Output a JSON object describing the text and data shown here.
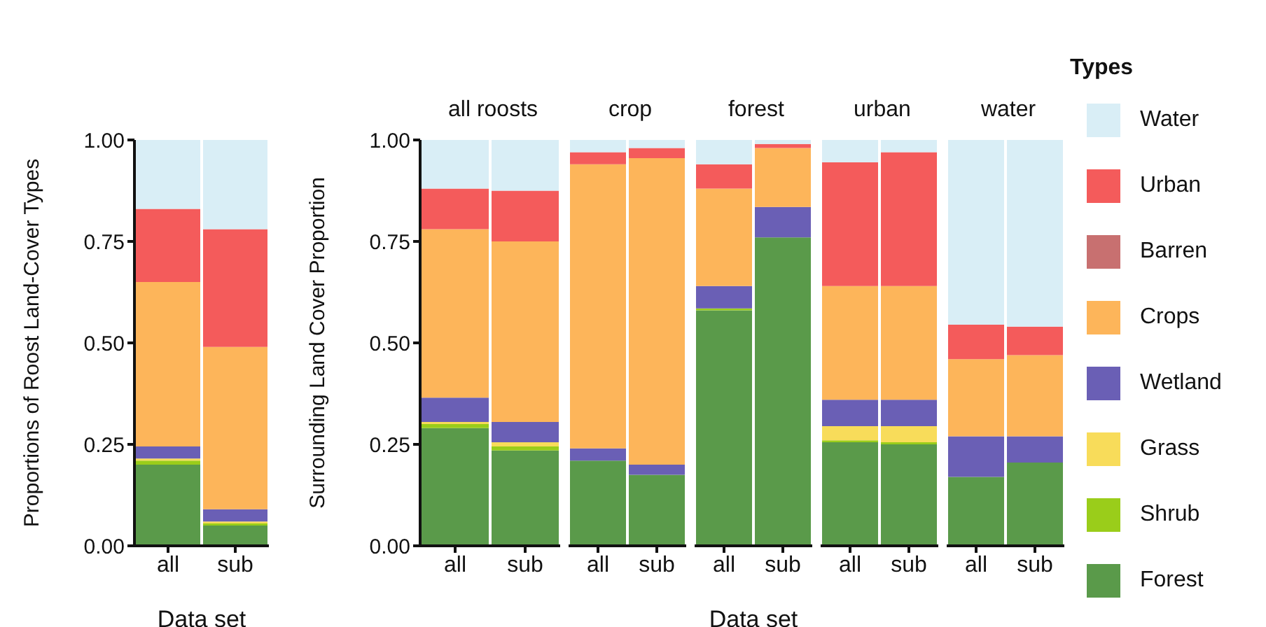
{
  "chart_data": [
    {
      "type": "bar",
      "stacked": true,
      "ylabel": "Proportions of Roost Land-Cover Types",
      "xlabel": "Data set",
      "categories": [
        "all",
        "sub"
      ],
      "ylim": [
        0,
        1
      ],
      "yticks": [
        {
          "value": 0,
          "label": "0.00"
        },
        {
          "value": 0.25,
          "label": "0.25"
        },
        {
          "value": 0.5,
          "label": "0.50"
        },
        {
          "value": 0.75,
          "label": "0.75"
        },
        {
          "value": 1,
          "label": "1.00"
        }
      ],
      "series": [
        {
          "color": "#5a9a4a",
          "values": [
            0.2,
            0.05
          ]
        },
        {
          "color": "#9acd1a",
          "values": [
            0.01,
            0.005
          ]
        },
        {
          "color": "#f8dc5a",
          "values": [
            0.005,
            0.005
          ]
        },
        {
          "color": "#6a5fb5",
          "values": [
            0.03,
            0.03
          ]
        },
        {
          "color": "#fdb55a",
          "values": [
            0.405,
            0.4
          ]
        },
        {
          "color": "#c87070",
          "values": [
            0,
            0
          ]
        },
        {
          "color": "#f45b5b",
          "values": [
            0.18,
            0.29
          ]
        },
        {
          "color": "#d9eef6",
          "values": [
            0.17,
            0.22
          ]
        }
      ]
    },
    {
      "type": "bar",
      "stacked": true,
      "title": "all roosts",
      "ylabel": "Surrounding Land Cover Proportion",
      "categories": [
        "all",
        "sub"
      ],
      "ylim": [
        0,
        1
      ],
      "yticks": [
        {
          "value": 0,
          "label": "0.00"
        },
        {
          "value": 0.25,
          "label": "0.25"
        },
        {
          "value": 0.5,
          "label": "0.50"
        },
        {
          "value": 0.75,
          "label": "0.75"
        },
        {
          "value": 1,
          "label": "1.00"
        }
      ],
      "series": [
        {
          "color": "#5a9a4a",
          "values": [
            0.29,
            0.235
          ]
        },
        {
          "color": "#9acd1a",
          "values": [
            0.01,
            0.01
          ]
        },
        {
          "color": "#f8dc5a",
          "values": [
            0.005,
            0.01
          ]
        },
        {
          "color": "#6a5fb5",
          "values": [
            0.06,
            0.05
          ]
        },
        {
          "color": "#fdb55a",
          "values": [
            0.415,
            0.445
          ]
        },
        {
          "color": "#c87070",
          "values": [
            0,
            0
          ]
        },
        {
          "color": "#f45b5b",
          "values": [
            0.1,
            0.125
          ]
        },
        {
          "color": "#d9eef6",
          "values": [
            0.12,
            0.125
          ]
        }
      ]
    },
    {
      "type": "bar",
      "stacked": true,
      "title": "crop",
      "tick_labels": "x",
      "categories": [
        "all",
        "sub"
      ],
      "ylim": [
        0,
        1
      ],
      "series": [
        {
          "color": "#5a9a4a",
          "values": [
            0.21,
            0.175
          ]
        },
        {
          "color": "#9acd1a",
          "values": [
            0,
            0
          ]
        },
        {
          "color": "#f8dc5a",
          "values": [
            0,
            0
          ]
        },
        {
          "color": "#6a5fb5",
          "values": [
            0.03,
            0.025
          ]
        },
        {
          "color": "#fdb55a",
          "values": [
            0.7,
            0.755
          ]
        },
        {
          "color": "#c87070",
          "values": [
            0,
            0
          ]
        },
        {
          "color": "#f45b5b",
          "values": [
            0.03,
            0.025
          ]
        },
        {
          "color": "#d9eef6",
          "values": [
            0.03,
            0.02
          ]
        }
      ]
    },
    {
      "type": "bar",
      "stacked": true,
      "title": "forest",
      "xlabel": "Data set",
      "tick_labels": "x",
      "categories": [
        "all",
        "sub"
      ],
      "ylim": [
        0,
        1
      ],
      "series": [
        {
          "color": "#5a9a4a",
          "values": [
            0.58,
            0.76
          ]
        },
        {
          "color": "#9acd1a",
          "values": [
            0.005,
            0
          ]
        },
        {
          "color": "#f8dc5a",
          "values": [
            0,
            0
          ]
        },
        {
          "color": "#6a5fb5",
          "values": [
            0.055,
            0.075
          ]
        },
        {
          "color": "#fdb55a",
          "values": [
            0.24,
            0.145
          ]
        },
        {
          "color": "#c87070",
          "values": [
            0,
            0
          ]
        },
        {
          "color": "#f45b5b",
          "values": [
            0.06,
            0.01
          ]
        },
        {
          "color": "#d9eef6",
          "values": [
            0.06,
            0.01
          ]
        }
      ]
    },
    {
      "type": "bar",
      "stacked": true,
      "title": "urban",
      "tick_labels": "x",
      "categories": [
        "all",
        "sub"
      ],
      "ylim": [
        0,
        1
      ],
      "series": [
        {
          "color": "#5a9a4a",
          "values": [
            0.255,
            0.25
          ]
        },
        {
          "color": "#9acd1a",
          "values": [
            0.005,
            0.005
          ]
        },
        {
          "color": "#f8dc5a",
          "values": [
            0.035,
            0.04
          ]
        },
        {
          "color": "#6a5fb5",
          "values": [
            0.065,
            0.065
          ]
        },
        {
          "color": "#fdb55a",
          "values": [
            0.28,
            0.28
          ]
        },
        {
          "color": "#c87070",
          "values": [
            0,
            0
          ]
        },
        {
          "color": "#f45b5b",
          "values": [
            0.305,
            0.33
          ]
        },
        {
          "color": "#d9eef6",
          "values": [
            0.055,
            0.03
          ]
        }
      ]
    },
    {
      "type": "bar",
      "stacked": true,
      "title": "water",
      "tick_labels": "x",
      "legend": "right",
      "legend_title": "Types",
      "categories": [
        "all",
        "sub"
      ],
      "ylim": [
        0,
        1
      ],
      "series": [
        {
          "name": "Forest",
          "color": "#5a9a4a",
          "values": [
            0.17,
            0.205
          ]
        },
        {
          "name": "Shrub",
          "color": "#9acd1a",
          "values": [
            0,
            0
          ]
        },
        {
          "name": "Grass",
          "color": "#f8dc5a",
          "values": [
            0,
            0
          ]
        },
        {
          "name": "Wetland",
          "color": "#6a5fb5",
          "values": [
            0.1,
            0.065
          ]
        },
        {
          "name": "Crops",
          "color": "#fdb55a",
          "values": [
            0.19,
            0.2
          ]
        },
        {
          "name": "Barren",
          "color": "#c87070",
          "values": [
            0,
            0
          ]
        },
        {
          "name": "Urban",
          "color": "#f45b5b",
          "values": [
            0.085,
            0.07
          ]
        },
        {
          "name": "Water",
          "color": "#d9eef6",
          "values": [
            0.455,
            0.46
          ]
        }
      ]
    }
  ]
}
